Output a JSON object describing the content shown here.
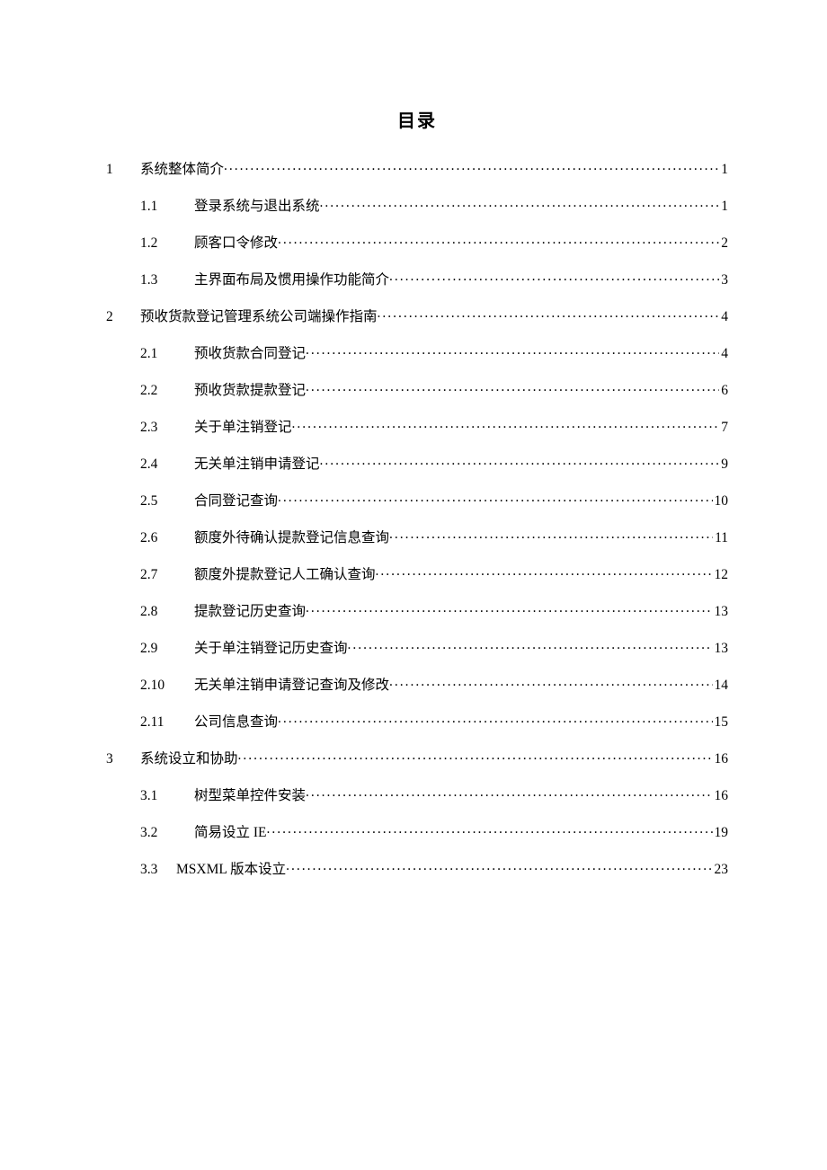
{
  "doc": {
    "title": "目录",
    "title_fontsize_pt": 16,
    "body_fontsize_pt": 12,
    "text_color": "#000000",
    "background_color": "#ffffff",
    "leader_char": ".",
    "font_family_cjk": "SimSun",
    "font_family_latin": "Times New Roman"
  },
  "toc": [
    {
      "level": 1,
      "number": "1",
      "title": "系统整体简介",
      "page": "1"
    },
    {
      "level": 2,
      "number": "1.1",
      "title": "登录系统与退出系统",
      "page": "1"
    },
    {
      "level": 2,
      "number": "1.2",
      "title": "顾客口令修改",
      "page": "2"
    },
    {
      "level": 2,
      "number": "1.3",
      "title": "主界面布局及惯用操作功能简介",
      "page": "3"
    },
    {
      "level": 1,
      "number": "2",
      "title": "预收货款登记管理系统公司端操作指南",
      "page": "4"
    },
    {
      "level": 2,
      "number": "2.1",
      "title": "预收货款合同登记",
      "page": "4"
    },
    {
      "level": 2,
      "number": "2.2",
      "title": "预收货款提款登记",
      "page": "6"
    },
    {
      "level": 2,
      "number": "2.3",
      "title": "关于单注销登记",
      "page": "7"
    },
    {
      "level": 2,
      "number": "2.4",
      "title": "无关单注销申请登记",
      "page": "9"
    },
    {
      "level": 2,
      "number": "2.5",
      "title": "合同登记查询",
      "page": "10"
    },
    {
      "level": 2,
      "number": "2.6",
      "title": "额度外待确认提款登记信息查询",
      "page": "11"
    },
    {
      "level": 2,
      "number": "2.7",
      "title": "额度外提款登记人工确认查询",
      "page": "12"
    },
    {
      "level": 2,
      "number": "2.8",
      "title": "提款登记历史查询",
      "page": "13"
    },
    {
      "level": 2,
      "number": "2.9",
      "title": "关于单注销登记历史查询",
      "page": "13"
    },
    {
      "level": 2,
      "number": "2.10",
      "title": "无关单注销申请登记查询及修改",
      "page": "14"
    },
    {
      "level": 2,
      "number": "2.11",
      "title": "公司信息查询",
      "page": "15"
    },
    {
      "level": 1,
      "number": "3",
      "title": "系统设立和协助",
      "page": "16"
    },
    {
      "level": 2,
      "number": "3.1",
      "title": "树型菜单控件安装",
      "page": "16"
    },
    {
      "level": 2,
      "number": "3.2",
      "title": "简易设立 IE",
      "page": "19"
    },
    {
      "level": 2,
      "number": "3.3",
      "title": "MSXML 版本设立",
      "page": "23",
      "tight": true
    }
  ]
}
